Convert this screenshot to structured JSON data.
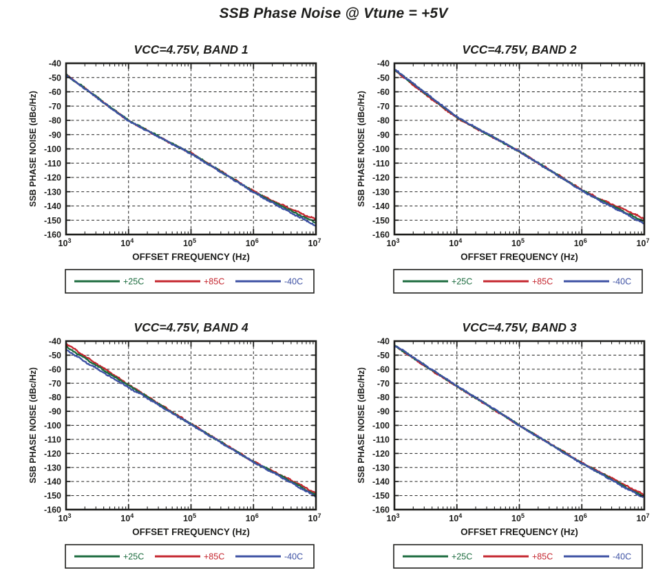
{
  "page_title": "SSB Phase Noise @ Vtune = +5V",
  "colors": {
    "plus25C": "#1B6B3E",
    "plus85C": "#C4252E",
    "minus40C": "#3C50A3",
    "axis_black": "#1D1D1B",
    "background": "#FFFFFF"
  },
  "chart_data": [
    {
      "type": "line",
      "title": "VCC=4.75V, BAND 1",
      "xlabel": "OFFSET FREQUENCY (Hz)",
      "ylabel": "SSB PHASE NOISE (dBc/Hz)",
      "x_scale": "log",
      "xlim": [
        1000,
        10000000
      ],
      "ylim": [
        -160,
        -40
      ],
      "xtick_exponents": [
        3,
        4,
        5,
        6,
        7
      ],
      "yticks": [
        -40,
        -50,
        -60,
        -70,
        -80,
        -90,
        -100,
        -110,
        -120,
        -130,
        -140,
        -150,
        -160
      ],
      "grid": "dashed",
      "legend_position": "below",
      "legend_entries": [
        {
          "label": "+25C",
          "color": "#1B6B3E"
        },
        {
          "label": "+85C",
          "color": "#C4252E"
        },
        {
          "label": "-40C",
          "color": "#3C50A3"
        }
      ],
      "x": [
        1000,
        2000,
        5000,
        10000,
        20000,
        50000,
        100000,
        200000,
        500000,
        1000000,
        2000000,
        5000000,
        10000000
      ],
      "series": [
        {
          "name": "+85C",
          "color": "#C4252E",
          "y": [
            -48,
            -57.5,
            -70.5,
            -80.2,
            -87.2,
            -96.5,
            -103,
            -111,
            -121.5,
            -129.7,
            -136.3,
            -144,
            -149.5
          ]
        },
        {
          "name": "+25C",
          "color": "#1B6B3E",
          "y": [
            -48,
            -57.5,
            -70.5,
            -80,
            -87,
            -96.3,
            -103,
            -111.1,
            -121.8,
            -130,
            -137,
            -145.5,
            -151.5
          ]
        },
        {
          "name": "-40C",
          "color": "#3C50A3",
          "y": [
            -48.3,
            -57.8,
            -70.8,
            -80.3,
            -87.3,
            -96.6,
            -103.3,
            -111.4,
            -122,
            -130.3,
            -137.8,
            -147,
            -153.8
          ]
        }
      ]
    },
    {
      "type": "line",
      "title": "VCC=4.75V, BAND 2",
      "xlabel": "OFFSET FREQUENCY (Hz)",
      "ylabel": "SSB PHASE NOISE (dBc/Hz)",
      "x_scale": "log",
      "xlim": [
        1000,
        10000000
      ],
      "ylim": [
        -160,
        -40
      ],
      "xtick_exponents": [
        3,
        4,
        5,
        6,
        7
      ],
      "yticks": [
        -40,
        -50,
        -60,
        -70,
        -80,
        -90,
        -100,
        -110,
        -120,
        -130,
        -140,
        -150,
        -160
      ],
      "grid": "dashed",
      "legend_position": "below",
      "legend_entries": [
        {
          "label": "+25C",
          "color": "#1B6B3E"
        },
        {
          "label": "+85C",
          "color": "#C4252E"
        },
        {
          "label": "-40C",
          "color": "#3C50A3"
        }
      ],
      "x": [
        1000,
        2000,
        5000,
        10000,
        20000,
        50000,
        100000,
        200000,
        500000,
        1000000,
        2000000,
        5000000,
        10000000
      ],
      "series": [
        {
          "name": "+85C",
          "color": "#C4252E",
          "y": [
            -44.7,
            -55.2,
            -68.5,
            -78.3,
            -85.5,
            -94.8,
            -101.8,
            -109.9,
            -120.4,
            -128.7,
            -135.3,
            -143,
            -149
          ]
        },
        {
          "name": "+25C",
          "color": "#1B6B3E",
          "y": [
            -44.5,
            -54.5,
            -67.8,
            -77.8,
            -85.2,
            -94.6,
            -101.8,
            -110,
            -120.7,
            -129,
            -136,
            -144.5,
            -151
          ]
        },
        {
          "name": "-40C",
          "color": "#3C50A3",
          "y": [
            -44.2,
            -54.2,
            -67.5,
            -77.6,
            -85,
            -94.4,
            -101.9,
            -110.1,
            -120.9,
            -129.2,
            -136.5,
            -145.5,
            -152.8
          ]
        }
      ]
    },
    {
      "type": "line",
      "title": "VCC=4.75V, BAND 4",
      "xlabel": "OFFSET FREQUENCY (Hz)",
      "ylabel": "SSB PHASE NOISE (dBc/Hz)",
      "x_scale": "log",
      "xlim": [
        1000,
        10000000
      ],
      "ylim": [
        -160,
        -40
      ],
      "xtick_exponents": [
        3,
        4,
        5,
        6,
        7
      ],
      "yticks": [
        -40,
        -50,
        -60,
        -70,
        -80,
        -90,
        -100,
        -110,
        -120,
        -130,
        -140,
        -150,
        -160
      ],
      "grid": "dashed",
      "legend_position": "below",
      "legend_entries": [
        {
          "label": "+25C",
          "color": "#1B6B3E"
        },
        {
          "label": "+85C",
          "color": "#C4252E"
        },
        {
          "label": "-40C",
          "color": "#3C50A3"
        }
      ],
      "x": [
        1000,
        2000,
        5000,
        10000,
        20000,
        50000,
        100000,
        200000,
        500000,
        1000000,
        2000000,
        5000000,
        10000000
      ],
      "series": [
        {
          "name": "+85C",
          "color": "#C4252E",
          "y": [
            -42,
            -50.7,
            -62.3,
            -71,
            -79.4,
            -90.6,
            -98.8,
            -107,
            -117.7,
            -125.8,
            -132.3,
            -141.3,
            -148.3
          ]
        },
        {
          "name": "+25C",
          "color": "#1B6B3E",
          "y": [
            -44,
            -52.3,
            -63.3,
            -71.5,
            -79.7,
            -90.9,
            -99,
            -107.2,
            -117.9,
            -126,
            -132.8,
            -142.3,
            -150
          ]
        },
        {
          "name": "-40C",
          "color": "#3C50A3",
          "y": [
            -46,
            -54.5,
            -65.2,
            -73,
            -80.6,
            -91.4,
            -99.4,
            -107.4,
            -118.1,
            -126.2,
            -133.3,
            -143.3,
            -151
          ]
        }
      ]
    },
    {
      "type": "line",
      "title": "VCC=4.75V, BAND 3",
      "xlabel": "OFFSET FREQUENCY (Hz)",
      "ylabel": "SSB PHASE NOISE (dBc/Hz)",
      "x_scale": "log",
      "xlim": [
        1000,
        10000000
      ],
      "ylim": [
        -160,
        -40
      ],
      "xtick_exponents": [
        3,
        4,
        5,
        6,
        7
      ],
      "yticks": [
        -40,
        -50,
        -60,
        -70,
        -80,
        -90,
        -100,
        -110,
        -120,
        -130,
        -140,
        -150,
        -160
      ],
      "grid": "dashed",
      "legend_position": "below",
      "legend_entries": [
        {
          "label": "+25C",
          "color": "#1B6B3E"
        },
        {
          "label": "+85C",
          "color": "#C4252E"
        },
        {
          "label": "-40C",
          "color": "#3C50A3"
        }
      ],
      "x": [
        1000,
        2000,
        5000,
        10000,
        20000,
        50000,
        100000,
        200000,
        500000,
        1000000,
        2000000,
        5000000,
        10000000
      ],
      "series": [
        {
          "name": "+85C",
          "color": "#C4252E",
          "y": [
            -43.2,
            -52.2,
            -63.8,
            -72.4,
            -80.6,
            -91.6,
            -100.1,
            -108,
            -118.5,
            -126.7,
            -133.4,
            -142.8,
            -149.5
          ]
        },
        {
          "name": "+25C",
          "color": "#1B6B3E",
          "y": [
            -43,
            -51.8,
            -63.4,
            -72,
            -80.3,
            -91.4,
            -100,
            -108.1,
            -118.8,
            -127,
            -134,
            -144,
            -151
          ]
        },
        {
          "name": "-40C",
          "color": "#3C50A3",
          "y": [
            -42.8,
            -51.6,
            -63.2,
            -71.9,
            -80.2,
            -91.3,
            -100.2,
            -108.2,
            -119,
            -127.2,
            -134.4,
            -144.8,
            -151.5
          ]
        }
      ]
    }
  ]
}
